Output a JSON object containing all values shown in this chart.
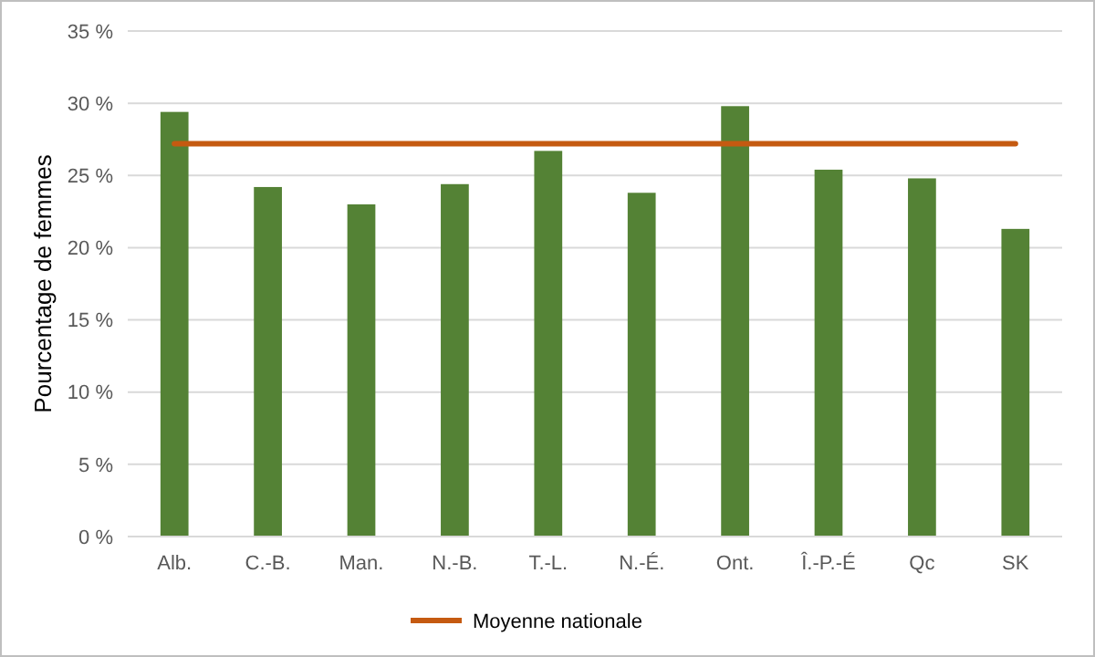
{
  "chart_data": {
    "type": "bar",
    "ylabel": "Pourcentage de femmes",
    "categories": [
      "Alb.",
      "C.-B.",
      "Man.",
      "N.-B.",
      "T.-L.",
      "N.-É.",
      "Ont.",
      "Î.-P.-É",
      "Qc",
      "SK"
    ],
    "series": [
      {
        "color": "#548235",
        "values": [
          29.4,
          24.2,
          23.0,
          24.4,
          26.7,
          23.8,
          29.8,
          25.4,
          24.8,
          21.3
        ]
      },
      {
        "type": "line",
        "name": "Moyenne nationale",
        "color": "#c55a11",
        "values": [
          27.2,
          27.2,
          27.2,
          27.2,
          27.2,
          27.2,
          27.2,
          27.2,
          27.2,
          27.2
        ]
      }
    ],
    "ylim": [
      0,
      35
    ],
    "yticks": [
      {
        "value": 0,
        "label": "0 %"
      },
      {
        "value": 5,
        "label": "5 %"
      },
      {
        "value": 10,
        "label": "10 %"
      },
      {
        "value": 15,
        "label": "15 %"
      },
      {
        "value": 20,
        "label": "20 %"
      },
      {
        "value": 25,
        "label": "25 %"
      },
      {
        "value": 30,
        "label": "30 %"
      },
      {
        "value": 35,
        "label": "35 %"
      }
    ],
    "grid": "y",
    "legend": "bottom"
  }
}
